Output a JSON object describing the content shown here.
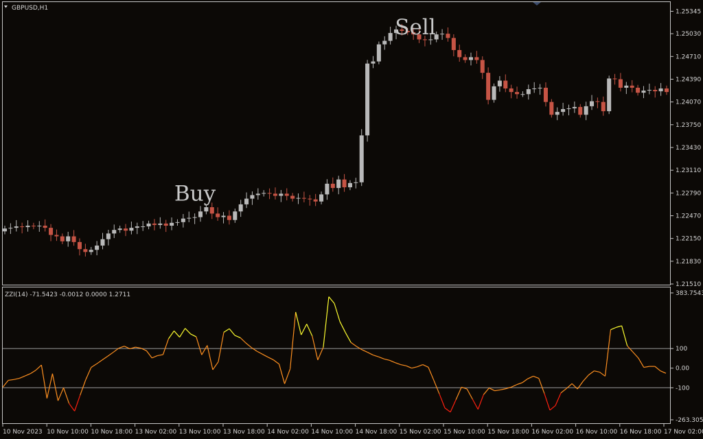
{
  "window": {
    "symbol_label": "GBPUSD,H1",
    "indicator_label": "ZZI(14) -71.5423 -0.0012 0.0000 1.2711"
  },
  "colors": {
    "background": "#0c0906",
    "frame": "#c8c8c8",
    "bull_candle": "#b9b9b9",
    "bear_candle": "#c65445",
    "level_line": "#9a9a9a",
    "indicator_low": "#ff2010",
    "indicator_mid": "#ff9020",
    "indicator_high": "#ffff30"
  },
  "chart_data": [
    {
      "type": "candlestick",
      "title": "GBPUSD,H1",
      "y_ticks": [
        "1.25345",
        "1.25030",
        "1.24710",
        "1.24390",
        "1.24070",
        "1.23750",
        "1.23430",
        "1.23110",
        "1.22790",
        "1.22470",
        "1.22150",
        "1.21830",
        "1.21510"
      ],
      "ylim": [
        1.2151,
        1.2534
      ],
      "annotations": [
        {
          "text": "Buy",
          "at_price": 1.2279
        },
        {
          "text": "Sell",
          "at_price": 1.2513
        }
      ],
      "close_series": [
        1.2229,
        1.223,
        1.2232,
        1.2231,
        1.2233,
        1.2232,
        1.2233,
        1.223,
        1.222,
        1.2218,
        1.2211,
        1.2218,
        1.221,
        1.22,
        1.2196,
        1.2199,
        1.2205,
        1.2214,
        1.2222,
        1.2227,
        1.2229,
        1.2226,
        1.223,
        1.2232,
        1.2232,
        1.2236,
        1.2234,
        1.2236,
        1.2233,
        1.2237,
        1.2238,
        1.2243,
        1.2244,
        1.2245,
        1.2253,
        1.2259,
        1.225,
        1.2245,
        1.2247,
        1.2241,
        1.2253,
        1.2263,
        1.2271,
        1.2276,
        1.2278,
        1.2279,
        1.2278,
        1.2275,
        1.2278,
        1.2275,
        1.2271,
        1.2272,
        1.2271,
        1.227,
        1.2267,
        1.2277,
        1.2292,
        1.2286,
        1.2298,
        1.2287,
        1.2293,
        1.2294,
        1.236,
        1.2461,
        1.2464,
        1.2488,
        1.2493,
        1.2504,
        1.2509,
        1.2507,
        1.2505,
        1.2502,
        1.2495,
        1.2494,
        1.2495,
        1.2502,
        1.2503,
        1.2497,
        1.248,
        1.247,
        1.2466,
        1.247,
        1.2466,
        1.2448,
        1.241,
        1.2429,
        1.2437,
        1.2426,
        1.2421,
        1.2418,
        1.2418,
        1.2425,
        1.2426,
        1.2427,
        1.2407,
        1.2389,
        1.2393,
        1.2397,
        1.2398,
        1.24,
        1.2389,
        1.2401,
        1.2408,
        1.2407,
        1.2394,
        1.244,
        1.2439,
        1.2427,
        1.243,
        1.2427,
        1.242,
        1.2423,
        1.2424,
        1.2422,
        1.2426,
        1.2421
      ],
      "x_tick_labels": [
        "10 Nov 2023",
        "10 Nov 10:00",
        "10 Nov 18:00",
        "13 Nov 02:00",
        "13 Nov 10:00",
        "13 Nov 18:00",
        "14 Nov 02:00",
        "14 Nov 10:00",
        "14 Nov 18:00",
        "15 Nov 02:00",
        "15 Nov 10:00",
        "15 Nov 18:00",
        "16 Nov 02:00",
        "16 Nov 10:00",
        "16 Nov 18:00",
        "17 Nov 02:00"
      ]
    },
    {
      "type": "line",
      "title": "ZZI(14) -71.5423 -0.0012 0.0000 1.2711",
      "y_ticks": [
        "383.7543",
        "100",
        "0.00",
        "-100",
        "-263.3058"
      ],
      "ylim": [
        -263.3058,
        383.7543
      ],
      "levels": [
        100,
        -100
      ],
      "series": [
        {
          "values": [
            -97,
            -62,
            -58,
            -52,
            -40,
            -28,
            -10,
            16,
            -154,
            -28,
            -166,
            -100,
            -180,
            -219,
            -138,
            -60,
            4,
            22,
            42,
            61,
            81,
            102,
            112,
            99,
            107,
            102,
            89,
            52,
            64,
            69,
            150,
            190,
            158,
            203,
            174,
            160,
            68,
            116,
            -8,
            32,
            183,
            201,
            167,
            155,
            128,
            105,
            86,
            71,
            56,
            42,
            21,
            -80,
            -4,
            286,
            170,
            225,
            164,
            42,
            106,
            364,
            330,
            238,
            182,
            131,
            111,
            94,
            81,
            67,
            58,
            47,
            40,
            28,
            18,
            12,
            0,
            7,
            18,
            5,
            -62,
            -131,
            -203,
            -224,
            -161,
            -97,
            -106,
            -158,
            -210,
            -135,
            -101,
            -115,
            -111,
            -105,
            -97,
            -84,
            -74,
            -54,
            -41,
            -52,
            -129,
            -214,
            -191,
            -126,
            -104,
            -79,
            -106,
            -67,
            -35,
            -14,
            -20,
            -41,
            196,
            208,
            216,
            114,
            83,
            52,
            4,
            9,
            9,
            -14,
            -26
          ]
        }
      ]
    }
  ]
}
